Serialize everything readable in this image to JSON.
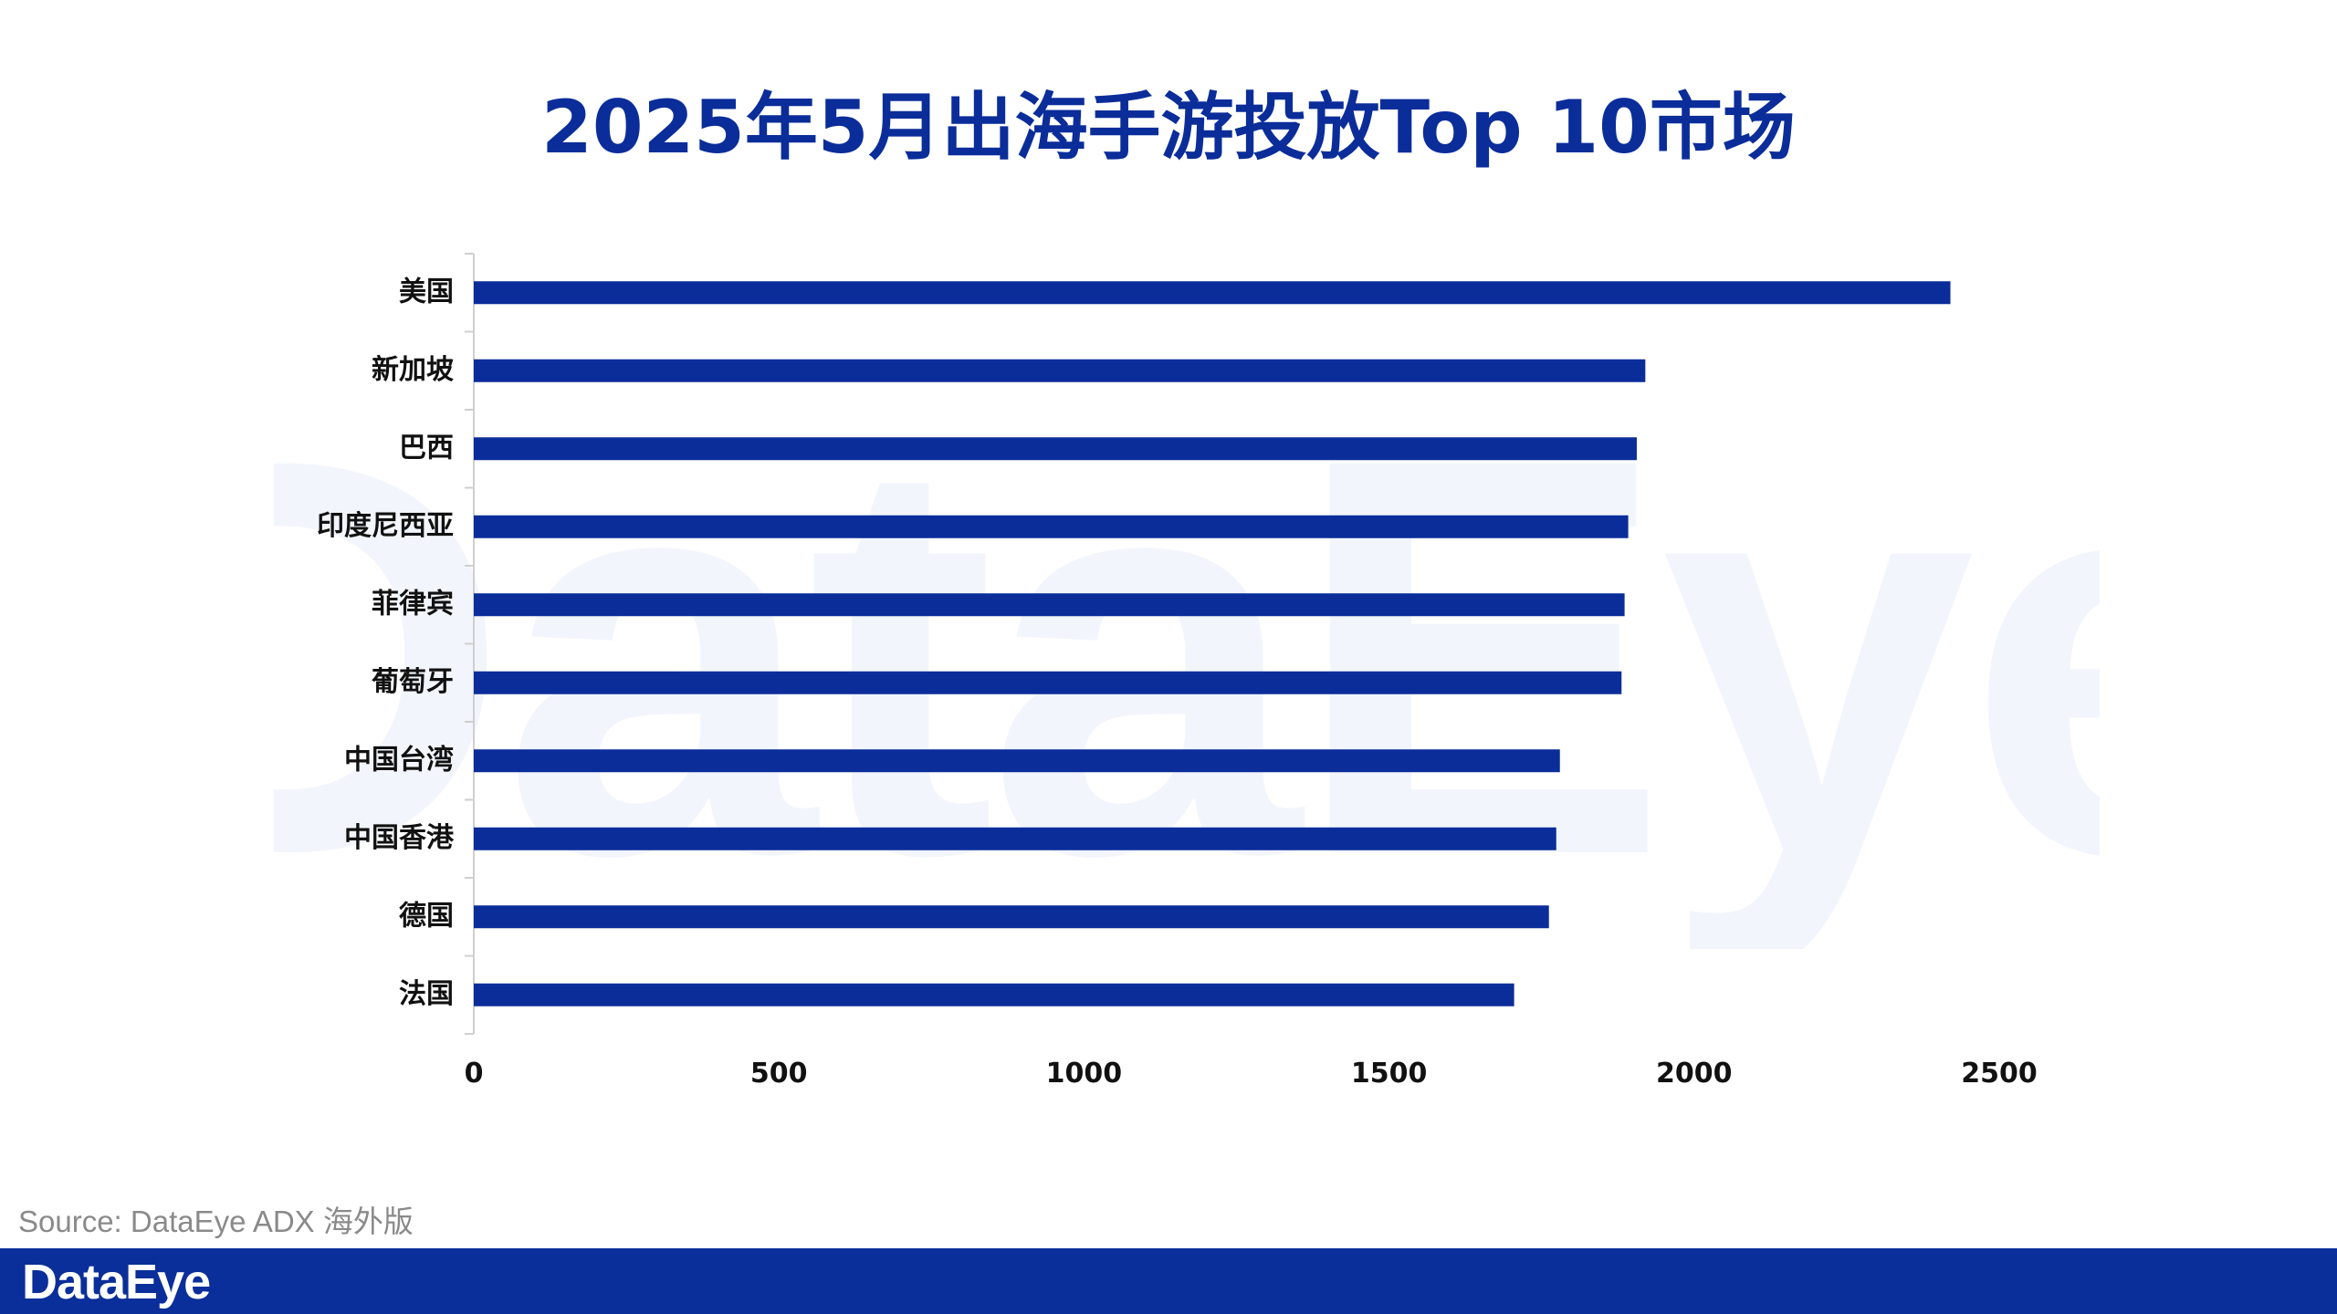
{
  "watermark": "DataEye",
  "source": "Source: DataEye ADX 海外版",
  "footer": {
    "logo": "DataEye",
    "bar_color": "#0a2f9a"
  },
  "chart_data": {
    "type": "bar",
    "orientation": "horizontal",
    "title": "2025年5月出海手游投放Top 10市场",
    "xlabel": "",
    "ylabel": "",
    "xlim": [
      0,
      2500
    ],
    "xticks": [
      0,
      500,
      1000,
      1500,
      2000,
      2500
    ],
    "grid": false,
    "legend": "none",
    "bar_color": "#0b2d9a",
    "categories": [
      "美国",
      "新加坡",
      "巴西",
      "印度尼西亚",
      "菲律宾",
      "葡萄牙",
      "中国台湾",
      "中国香港",
      "德国",
      "法国"
    ],
    "values": [
      2420,
      1920,
      1906,
      1892,
      1886,
      1881,
      1780,
      1774,
      1762,
      1705
    ]
  }
}
